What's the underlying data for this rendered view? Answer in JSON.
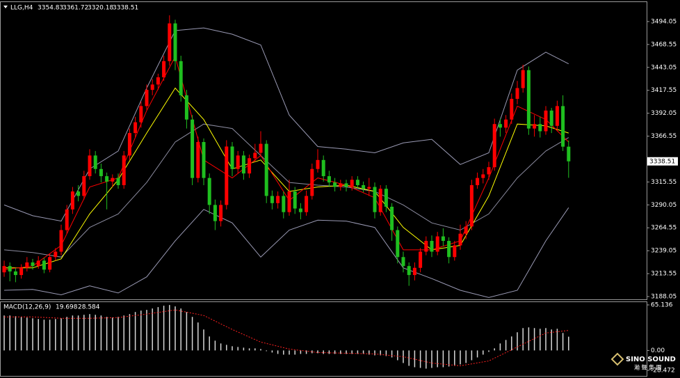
{
  "chart_data": [
    {
      "type": "candlestick",
      "symbol": "LLG,H4",
      "up_color": "#ff0000",
      "down_color": "#1fbf1f",
      "open": [
        3215,
        3222,
        3216,
        3212,
        3220,
        3226,
        3222,
        3228,
        3218,
        3232,
        3238,
        3262,
        3285,
        3305,
        3300,
        3322,
        3345,
        3330,
        3322,
        3316,
        3320,
        3312,
        3345,
        3370,
        3382,
        3400,
        3418,
        3424,
        3432,
        3450,
        3492,
        3450,
        3412,
        3385,
        3320,
        3360,
        3320,
        3290,
        3272,
        3290,
        3355,
        3330,
        3345,
        3325,
        3342,
        3348,
        3358,
        3300,
        3292,
        3300,
        3282,
        3305,
        3286,
        3282,
        3300,
        3330,
        3340,
        3322,
        3315,
        3310,
        3314,
        3310,
        3318,
        3312,
        3308,
        3310,
        3282,
        3308,
        3288,
        3262,
        3232,
        3222,
        3212,
        3220,
        3238,
        3250,
        3238,
        3255,
        3250,
        3232,
        3245,
        3258,
        3266,
        3312,
        3320,
        3324,
        3332,
        3380,
        3376,
        3385,
        3408,
        3420,
        3440,
        3375,
        3380,
        3372,
        3395,
        3378,
        3400,
        3354.83
      ],
      "high": [
        3228,
        3226,
        3220,
        3224,
        3232,
        3230,
        3233,
        3231,
        3236,
        3242,
        3268,
        3290,
        3310,
        3312,
        3328,
        3352,
        3350,
        3336,
        3326,
        3324,
        3325,
        3350,
        3375,
        3388,
        3405,
        3424,
        3430,
        3436,
        3456,
        3501,
        3496,
        3456,
        3418,
        3390,
        3366,
        3364,
        3325,
        3296,
        3295,
        3362,
        3360,
        3350,
        3350,
        3346,
        3358,
        3372,
        3362,
        3306,
        3305,
        3305,
        3318,
        3310,
        3292,
        3306,
        3336,
        3352,
        3345,
        3328,
        3320,
        3318,
        3318,
        3322,
        3322,
        3316,
        3320,
        3315,
        3312,
        3312,
        3292,
        3266,
        3238,
        3226,
        3226,
        3242,
        3255,
        3256,
        3260,
        3264,
        3254,
        3250,
        3268,
        3272,
        3318,
        3326,
        3330,
        3338,
        3386,
        3386,
        3390,
        3414,
        3428,
        3446,
        3444,
        3390,
        3388,
        3400,
        3398,
        3406,
        3412,
        3361.72
      ],
      "low": [
        3210,
        3205,
        3204,
        3208,
        3216,
        3218,
        3219,
        3214,
        3215,
        3228,
        3234,
        3258,
        3280,
        3294,
        3296,
        3318,
        3325,
        3315,
        3285,
        3310,
        3308,
        3308,
        3340,
        3365,
        3376,
        3396,
        3412,
        3418,
        3428,
        3445,
        3440,
        3405,
        3375,
        3312,
        3315,
        3312,
        3280,
        3262,
        3266,
        3285,
        3322,
        3325,
        3318,
        3320,
        3338,
        3344,
        3292,
        3285,
        3286,
        3275,
        3278,
        3280,
        3274,
        3278,
        3296,
        3326,
        3316,
        3310,
        3305,
        3306,
        3305,
        3306,
        3308,
        3304,
        3300,
        3275,
        3278,
        3282,
        3250,
        3225,
        3215,
        3200,
        3206,
        3215,
        3234,
        3232,
        3234,
        3244,
        3225,
        3228,
        3240,
        3252,
        3262,
        3308,
        3314,
        3318,
        3328,
        3366,
        3370,
        3380,
        3402,
        3415,
        3368,
        3366,
        3365,
        3368,
        3370,
        3372,
        3350,
        3320.18
      ],
      "close": [
        3222,
        3216,
        3212,
        3220,
        3226,
        3222,
        3228,
        3218,
        3232,
        3238,
        3262,
        3285,
        3305,
        3300,
        3322,
        3345,
        3330,
        3322,
        3316,
        3320,
        3312,
        3345,
        3370,
        3382,
        3400,
        3418,
        3424,
        3432,
        3450,
        3492,
        3450,
        3412,
        3385,
        3320,
        3360,
        3320,
        3290,
        3272,
        3290,
        3355,
        3330,
        3345,
        3325,
        3342,
        3348,
        3358,
        3300,
        3292,
        3300,
        3282,
        3305,
        3286,
        3282,
        3300,
        3330,
        3340,
        3322,
        3315,
        3310,
        3314,
        3310,
        3318,
        3312,
        3308,
        3310,
        3282,
        3308,
        3288,
        3262,
        3232,
        3222,
        3212,
        3220,
        3238,
        3250,
        3238,
        3255,
        3250,
        3232,
        3245,
        3258,
        3266,
        3312,
        3320,
        3324,
        3332,
        3380,
        3376,
        3385,
        3408,
        3420,
        3440,
        3375,
        3380,
        3372,
        3395,
        3378,
        3400,
        3354.83,
        3338.51
      ],
      "overlay_x": [
        0,
        5,
        10,
        15,
        20,
        25,
        30,
        35,
        40,
        45,
        50,
        55,
        60,
        65,
        70,
        75,
        80,
        85,
        90,
        95,
        99
      ],
      "overlays": [
        {
          "color": "#9a9ab4",
          "values": [
            3290,
            3278,
            3272,
            3330,
            3350,
            3420,
            3484,
            3487,
            3480,
            3468,
            3390,
            3355,
            3352,
            3348,
            3359,
            3363,
            3335,
            3348,
            3440,
            3460,
            3447
          ]
        },
        {
          "color": "#9a9ab4",
          "values": [
            3195,
            3196,
            3190,
            3200,
            3192,
            3210,
            3250,
            3285,
            3270,
            3232,
            3262,
            3273,
            3272,
            3265,
            3220,
            3208,
            3195,
            3187,
            3195,
            3250,
            3287
          ]
        },
        {
          "color": "#8c8ca0",
          "values": [
            3240,
            3237,
            3232,
            3265,
            3280,
            3315,
            3360,
            3380,
            3375,
            3345,
            3315,
            3312,
            3310,
            3305,
            3290,
            3270,
            3262,
            3280,
            3320,
            3350,
            3365
          ]
        },
        {
          "color": "#ffff00",
          "values": [
            3220,
            3220,
            3230,
            3280,
            3318,
            3370,
            3420,
            3385,
            3330,
            3340,
            3305,
            3310,
            3312,
            3305,
            3265,
            3240,
            3245,
            3300,
            3380,
            3378,
            3370
          ]
        },
        {
          "color": "#ff0000",
          "values": [
            3218,
            3222,
            3245,
            3310,
            3320,
            3395,
            3455,
            3340,
            3320,
            3345,
            3295,
            3320,
            3312,
            3298,
            3240,
            3240,
            3250,
            3320,
            3400,
            3385,
            3360
          ]
        }
      ],
      "ylim": [
        3184.95,
        3515.7
      ],
      "yticks": [
        3494.05,
        3468.55,
        3443.05,
        3417.55,
        3392.05,
        3366.55,
        3315.55,
        3290.05,
        3264.55,
        3239.05,
        3213.55,
        3188.05
      ]
    },
    {
      "type": "macd",
      "title": "MACD(12,26,9)",
      "color": "#d8d8d8",
      "signal_color": "#ff2020",
      "histogram": [
        50,
        50,
        49,
        48,
        47,
        46,
        45,
        44,
        44,
        45,
        46,
        48,
        50,
        50,
        51,
        52,
        51,
        50,
        48,
        47,
        48,
        50,
        52,
        55,
        57,
        58,
        60,
        62,
        64,
        65,
        63,
        60,
        55,
        48,
        40,
        30,
        20,
        14,
        10,
        8,
        6,
        5,
        4,
        3,
        3,
        2,
        -1,
        -3,
        -5,
        -6,
        -6,
        -6,
        -5,
        -5,
        -4,
        -4,
        -5,
        -5,
        -5,
        -5,
        -5,
        -5,
        -5,
        -5,
        -6,
        -7,
        -7,
        -8,
        -10,
        -14,
        -18,
        -22,
        -24,
        -25,
        -26,
        -25,
        -24,
        -24,
        -23,
        -22,
        -20,
        -18,
        -14,
        -10,
        -6,
        -2,
        3,
        10,
        15,
        20,
        26,
        32,
        33,
        32,
        31,
        32,
        30,
        31,
        25,
        19.698
      ],
      "signal_x": [
        0,
        5,
        10,
        15,
        20,
        25,
        30,
        35,
        40,
        45,
        50,
        55,
        60,
        65,
        70,
        75,
        80,
        85,
        90,
        95,
        99
      ],
      "signal": [
        48,
        48,
        46,
        46,
        47,
        52,
        58,
        50,
        30,
        12,
        2,
        -3,
        -4,
        -5,
        -9,
        -18,
        -22,
        -15,
        5,
        25,
        28.584
      ],
      "ylim": [
        -28.472,
        65.136
      ],
      "yticks": [
        65.136,
        {
          "value": 0,
          "label": "0.00"
        },
        -28.472
      ]
    }
  ],
  "watermark": {
    "name": "SINO SOUND",
    "subtitle": "瀚 聲 集 團"
  }
}
